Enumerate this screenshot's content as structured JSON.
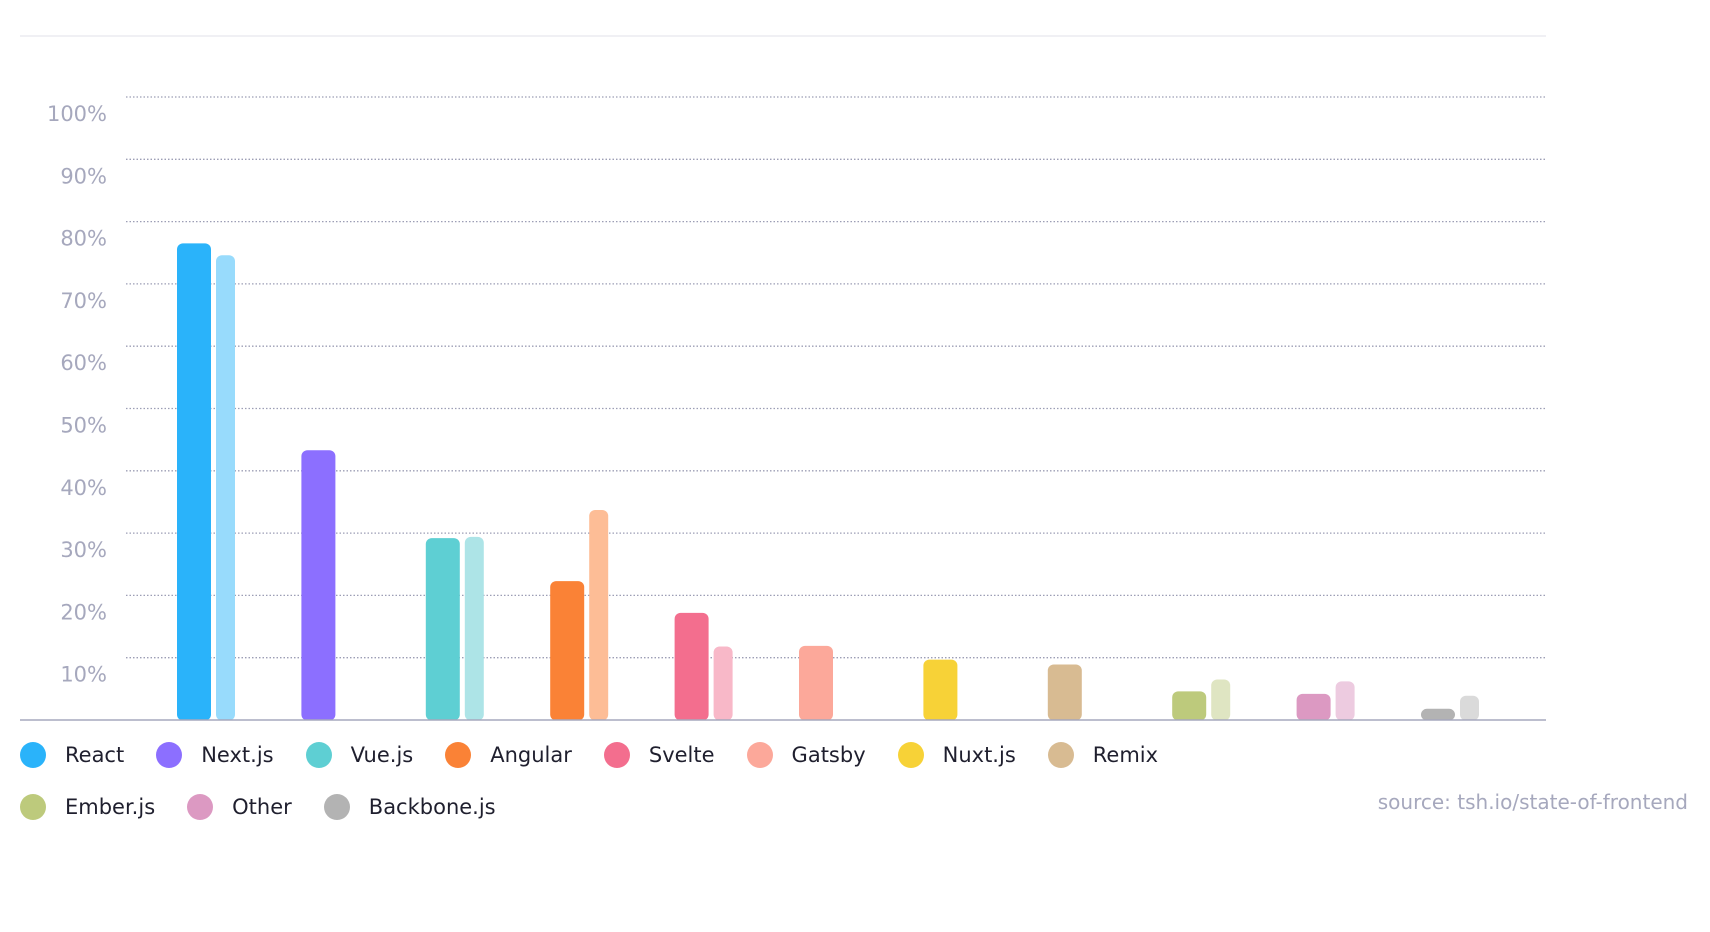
{
  "chart_data": {
    "type": "bar",
    "categories": [
      "React",
      "Next.js",
      "Vue.js",
      "Angular",
      "Svelte",
      "Gatsby",
      "Nuxt.js",
      "Remix",
      "Ember.js",
      "Other",
      "Backbone.js"
    ],
    "series": [
      {
        "values": [
          76.5,
          43.3,
          29.2,
          22.3,
          17.2,
          11.9,
          9.7,
          8.9,
          4.6,
          4.2,
          1.8
        ]
      },
      {
        "values": [
          74.6,
          null,
          29.4,
          33.7,
          11.8,
          null,
          null,
          null,
          6.5,
          6.2,
          3.9
        ]
      }
    ],
    "colors": [
      "#2ab3fa",
      "#8c6fff",
      "#5ecfd3",
      "#fa8236",
      "#f36e8e",
      "#fca89a",
      "#f7d237",
      "#d8bb92",
      "#bdca7c",
      "#dc99c2",
      "#b3b3b3"
    ],
    "light_colors": [
      "#98dbfc",
      null,
      "#ade4e7",
      "#fdbd96",
      "#f8b8c8",
      null,
      null,
      null,
      "#dfe5c2",
      "#edcbe0",
      "#dadada"
    ],
    "yticks": [
      "10%",
      "20%",
      "30%",
      "40%",
      "50%",
      "60%",
      "70%",
      "80%",
      "90%",
      "100%"
    ],
    "ylim": [
      0,
      100
    ],
    "grid": true,
    "legend_position": "bottom"
  },
  "legend": {
    "items": [
      {
        "label": "React",
        "color": "#2ab3fa"
      },
      {
        "label": "Next.js",
        "color": "#8c6fff"
      },
      {
        "label": "Vue.js",
        "color": "#5ecfd3"
      },
      {
        "label": "Angular",
        "color": "#fa8236"
      },
      {
        "label": "Svelte",
        "color": "#f36e8e"
      },
      {
        "label": "Gatsby",
        "color": "#fca89a"
      },
      {
        "label": "Nuxt.js",
        "color": "#f7d237"
      },
      {
        "label": "Remix",
        "color": "#d8bb92"
      },
      {
        "label": "Ember.js",
        "color": "#bdca7c"
      },
      {
        "label": "Other",
        "color": "#dc99c2"
      },
      {
        "label": "Backbone.js",
        "color": "#b3b3b3"
      }
    ]
  },
  "source": "source: tsh.io/state-of-frontend"
}
